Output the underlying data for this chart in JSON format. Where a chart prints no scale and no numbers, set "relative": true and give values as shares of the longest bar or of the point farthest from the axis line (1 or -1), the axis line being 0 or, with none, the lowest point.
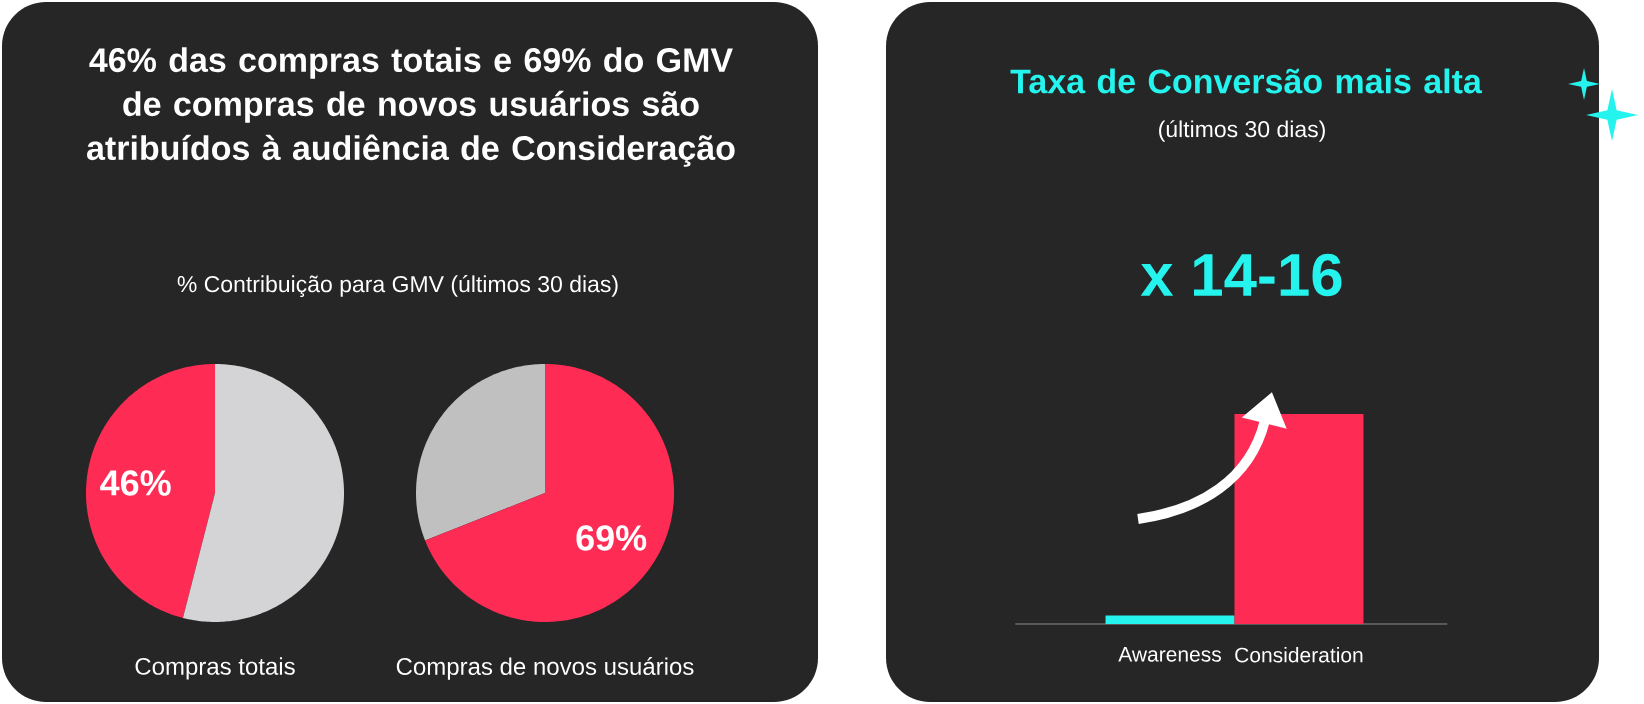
{
  "chart_data": [
    {
      "type": "pie",
      "title": "46% das compras totais e 69% do GMV de compras de novos usuários são atribuídos à audiência de Consideração",
      "subtitle": "% Contribuição para GMV (últimos 30 dias)",
      "xlabel": "Compras totais",
      "categories": [
        null,
        null
      ],
      "values": [
        46,
        54
      ],
      "colors": [
        "#fe2c55",
        "#d4d4d6"
      ],
      "value_labels": [
        "46%",
        null
      ]
    },
    {
      "type": "pie",
      "xlabel": "Compras de novos usuários",
      "categories": [
        null,
        null
      ],
      "values": [
        31,
        69
      ],
      "colors": [
        "#c0c0c0",
        "#fe2c55"
      ],
      "value_labels": [
        null,
        "69%"
      ]
    },
    {
      "type": "bar",
      "title": "Taxa de Conversão mais alta",
      "subtitle": "(últimos 30 dias)",
      "annotations": [
        "x 14-16"
      ],
      "categories": [
        "Awareness",
        "Consideration"
      ],
      "values": [
        0.04,
        1
      ],
      "colors": [
        "#25f4ee",
        "#fe2c55"
      ],
      "relative": true
    }
  ]
}
